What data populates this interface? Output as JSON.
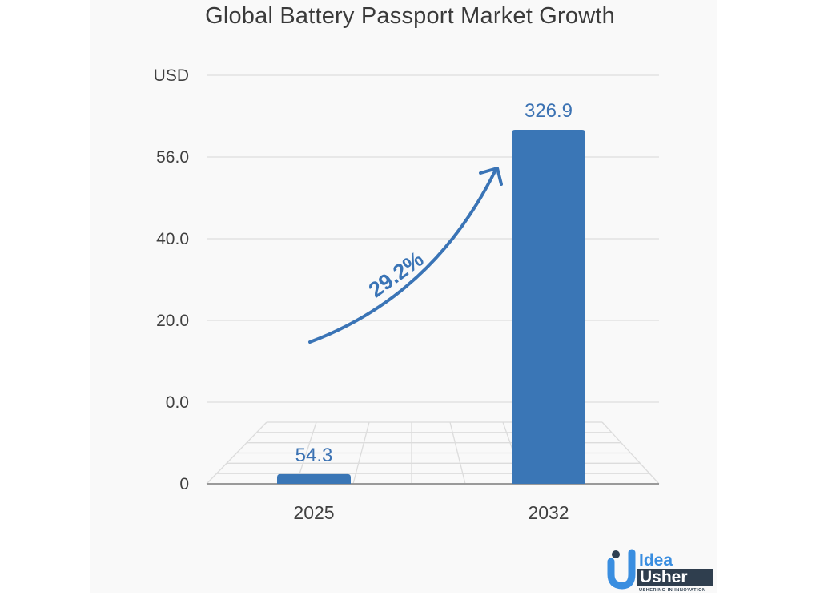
{
  "chart_data": {
    "type": "bar",
    "title": "Global Battery Passport Market Growth",
    "xlabel": "",
    "ylabel": "USD",
    "categories": [
      "2025",
      "2032"
    ],
    "values": [
      54.3,
      326.9
    ],
    "data_labels": [
      "54.3",
      "326.9"
    ],
    "bar_levels_fraction_of_axis": [
      0.02,
      0.87
    ],
    "y_ticks": [
      "0",
      "0.0",
      "20.0",
      "40.0",
      "56.0",
      "USD"
    ],
    "grid": true,
    "legend": null,
    "annotation": {
      "type": "growth-arrow",
      "label": "29.2%",
      "meaning": "CAGR from 2025 to 2032"
    },
    "colors": {
      "bar": "#3a76b6",
      "value_label": "#3b72b3",
      "arrow": "#3a74b6",
      "grid": "#dedede",
      "text": "#404040"
    }
  },
  "branding": {
    "logo_line1": "Idea",
    "logo_line2": "Usher",
    "tagline": "USHERING IN INNOVATION"
  }
}
